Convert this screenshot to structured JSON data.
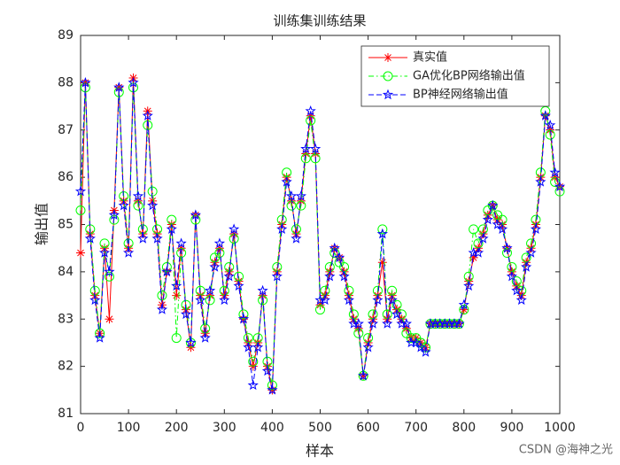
{
  "chart_data": {
    "type": "line",
    "title": "训练集训练结果",
    "xlabel": "样本",
    "ylabel": "输出值",
    "x": [
      0,
      10,
      20,
      30,
      40,
      50,
      60,
      70,
      80,
      90,
      100,
      110,
      120,
      130,
      140,
      150,
      160,
      170,
      180,
      190,
      200,
      210,
      220,
      230,
      240,
      250,
      260,
      270,
      280,
      290,
      300,
      310,
      320,
      330,
      340,
      350,
      360,
      370,
      380,
      390,
      400,
      410,
      420,
      430,
      440,
      450,
      460,
      470,
      480,
      490,
      500,
      510,
      520,
      530,
      540,
      550,
      560,
      570,
      580,
      590,
      600,
      610,
      620,
      630,
      640,
      650,
      660,
      670,
      680,
      690,
      700,
      710,
      720,
      730,
      740,
      750,
      760,
      770,
      780,
      790,
      800,
      810,
      820,
      830,
      840,
      850,
      860,
      870,
      880,
      890,
      900,
      910,
      920,
      930,
      940,
      950,
      960,
      970,
      980,
      990,
      1000
    ],
    "series": [
      {
        "name": "真实值",
        "color": "#ff0000",
        "marker": "asterisk",
        "dash": "solid",
        "values": [
          84.4,
          88.0,
          84.8,
          83.5,
          82.7,
          84.5,
          83.0,
          85.3,
          87.9,
          85.5,
          84.5,
          88.1,
          85.5,
          84.8,
          87.4,
          85.5,
          84.8,
          83.3,
          84.0,
          85.0,
          83.5,
          84.5,
          83.2,
          82.4,
          85.2,
          83.5,
          82.7,
          83.5,
          84.2,
          84.5,
          83.5,
          84.0,
          84.8,
          83.8,
          83.0,
          82.5,
          82.0,
          82.5,
          83.5,
          82.0,
          81.5,
          84.0,
          85.0,
          86.0,
          85.5,
          84.8,
          85.5,
          86.5,
          87.3,
          86.5,
          83.3,
          83.5,
          84.0,
          84.5,
          84.3,
          84.0,
          83.5,
          83.0,
          82.8,
          81.8,
          82.5,
          83.0,
          83.5,
          84.2,
          83.0,
          83.5,
          83.2,
          83.0,
          82.8,
          82.6,
          82.6,
          82.5,
          82.4,
          82.9,
          82.9,
          82.9,
          82.9,
          82.9,
          82.9,
          82.9,
          83.2,
          83.8,
          84.3,
          84.5,
          84.8,
          85.2,
          85.4,
          85.1,
          85.0,
          84.5,
          84.0,
          83.7,
          83.5,
          84.2,
          84.5,
          85.0,
          86.0,
          87.3,
          87.0,
          86.0,
          85.8
        ]
      },
      {
        "name": "GA优化BP网络输出值",
        "color": "#00ff00",
        "marker": "circle",
        "dash": "dashdot",
        "values": [
          85.3,
          87.9,
          84.9,
          83.6,
          82.7,
          84.6,
          83.9,
          85.1,
          87.8,
          85.6,
          84.6,
          87.9,
          85.4,
          84.9,
          87.1,
          85.7,
          84.9,
          83.5,
          84.1,
          85.1,
          82.6,
          84.4,
          83.3,
          82.5,
          85.1,
          83.6,
          82.8,
          83.4,
          84.3,
          84.4,
          83.6,
          84.1,
          84.7,
          83.9,
          83.1,
          82.6,
          82.1,
          82.6,
          83.4,
          82.1,
          81.6,
          84.1,
          85.1,
          86.1,
          85.4,
          84.9,
          85.4,
          86.4,
          87.2,
          86.4,
          83.2,
          83.6,
          84.1,
          84.4,
          84.2,
          84.1,
          83.6,
          83.1,
          82.7,
          81.8,
          82.6,
          83.1,
          83.6,
          84.9,
          83.1,
          83.6,
          83.3,
          83.1,
          82.7,
          82.6,
          82.6,
          82.5,
          82.4,
          82.9,
          82.9,
          82.9,
          82.9,
          82.9,
          82.9,
          82.9,
          83.2,
          83.9,
          84.9,
          84.6,
          84.9,
          85.3,
          85.4,
          85.2,
          85.1,
          84.4,
          84.1,
          83.8,
          83.6,
          84.3,
          84.6,
          85.1,
          86.1,
          87.4,
          86.9,
          85.9,
          85.7
        ]
      },
      {
        "name": "BP神经网络输出值",
        "color": "#0000ff",
        "marker": "pentagram",
        "dash": "dashed",
        "values": [
          85.7,
          88.0,
          84.7,
          83.4,
          82.6,
          84.4,
          84.0,
          85.2,
          87.9,
          85.4,
          84.4,
          88.0,
          85.6,
          84.7,
          87.3,
          85.4,
          84.7,
          83.2,
          84.0,
          84.9,
          83.7,
          84.6,
          83.1,
          82.5,
          85.2,
          83.4,
          82.6,
          83.6,
          84.1,
          84.6,
          83.4,
          83.9,
          84.9,
          83.7,
          83.0,
          82.4,
          81.6,
          82.4,
          83.6,
          81.9,
          81.5,
          83.9,
          84.9,
          85.9,
          85.6,
          84.7,
          85.6,
          86.6,
          87.4,
          86.6,
          83.4,
          83.4,
          83.9,
          84.5,
          84.3,
          83.9,
          83.4,
          82.9,
          82.9,
          81.8,
          82.4,
          82.9,
          83.4,
          84.8,
          82.9,
          83.4,
          83.1,
          82.9,
          82.9,
          82.5,
          82.5,
          82.4,
          82.3,
          82.9,
          82.9,
          82.9,
          82.9,
          82.9,
          82.9,
          82.9,
          83.3,
          83.7,
          84.4,
          84.4,
          84.7,
          85.1,
          85.4,
          85.0,
          84.9,
          84.5,
          83.9,
          83.6,
          83.4,
          84.1,
          84.4,
          84.9,
          85.9,
          87.3,
          87.1,
          86.1,
          85.8
        ]
      }
    ],
    "xlim": [
      0,
      1000
    ],
    "xticks": [
      0,
      100,
      200,
      300,
      400,
      500,
      600,
      700,
      800,
      900,
      1000
    ],
    "ylim": [
      81,
      89
    ],
    "yticks": [
      81,
      82,
      83,
      84,
      85,
      86,
      87,
      88,
      89
    ],
    "grid": false,
    "legend": "northeast",
    "watermark": "CSDN @海神之光"
  }
}
